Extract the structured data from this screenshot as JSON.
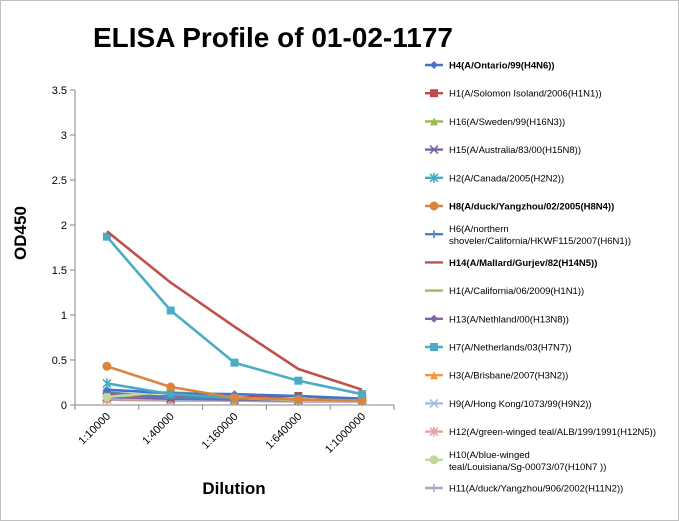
{
  "chart_data": {
    "type": "line",
    "title": "ELISA Profile of 01-02-1177",
    "xlabel": "Dilution",
    "ylabel": "OD450",
    "categories": [
      "1:10000",
      "1:40000",
      "1:160000",
      "1:640000",
      "1:1000000"
    ],
    "ylim": [
      0,
      3.5
    ],
    "yticks": [
      "0",
      "0.5",
      "1",
      "1.5",
      "2",
      "2.5",
      "3",
      "3.5"
    ],
    "legend_position": "right",
    "grid": false,
    "series": [
      {
        "name": "H4(A/Ontario/99(H4N6))",
        "bold": true,
        "color": "#4472C4",
        "marker": "diamond",
        "values": [
          0.17,
          0.13,
          0.12,
          0.1,
          0.07
        ]
      },
      {
        "name": "H1(A/Solomon Isoland/2006(H1N1))",
        "bold": false,
        "color": "#BE4B48",
        "marker": "square",
        "values": [
          0.12,
          0.09,
          0.08,
          0.1,
          0.06
        ]
      },
      {
        "name": "H16(A/Sweden/99(H16N3))",
        "bold": false,
        "color": "#98B954",
        "marker": "triangle",
        "values": [
          0.1,
          0.1,
          0.07,
          0.06,
          0.05
        ]
      },
      {
        "name": "H15(A/Australia/83/00(H15N8))",
        "bold": false,
        "color": "#7D60A0",
        "marker": "x",
        "values": [
          0.09,
          0.07,
          0.06,
          0.05,
          0.05
        ]
      },
      {
        "name": "H2(A/Canada/2005(H2N2))",
        "bold": false,
        "color": "#46AAC5",
        "marker": "star",
        "values": [
          0.24,
          0.12,
          0.08,
          0.06,
          0.05
        ]
      },
      {
        "name": "H8(A/duck/Yangzhou/02/2005(H8N4))",
        "bold": true,
        "color": "#DB843D",
        "marker": "circle",
        "values": [
          0.43,
          0.2,
          0.08,
          0.06,
          0.05
        ]
      },
      {
        "name": "H6(A/northern shoveler/California/HKWF115/2007(H6N1))",
        "bold": false,
        "color": "#4F81BD",
        "marker": "plus",
        "values": [
          0.14,
          0.08,
          0.07,
          0.06,
          0.05
        ]
      },
      {
        "name": "H14(A/Mallard/Gurjev/82(H14N5))",
        "bold": true,
        "color": "#C0504D",
        "marker": "none",
        "values": [
          1.93,
          1.36,
          0.87,
          0.4,
          0.17
        ]
      },
      {
        "name": "H1(A/California/06/2009(H1N1))",
        "bold": false,
        "color": "#9BBB59",
        "marker": "none",
        "values": [
          0.08,
          0.07,
          0.06,
          0.05,
          0.05
        ]
      },
      {
        "name": "H13(A/Nethland/00(H13N8))",
        "bold": false,
        "color": "#8064A2",
        "marker": "diamond",
        "values": [
          0.07,
          0.06,
          0.05,
          0.05,
          0.05
        ]
      },
      {
        "name": "H7(A/Netherlands/03(H7N7))",
        "bold": false,
        "color": "#4BACC6",
        "marker": "square",
        "values": [
          1.87,
          1.05,
          0.47,
          0.27,
          0.12
        ]
      },
      {
        "name": "H3(A/Brisbane/2007(H3N2))",
        "bold": false,
        "color": "#F79646",
        "marker": "triangle",
        "values": [
          0.07,
          0.06,
          0.05,
          0.05,
          0.04
        ]
      },
      {
        "name": "H9(A/Hong Kong/1073/99(H9N2))",
        "bold": false,
        "color": "#A5BCDF",
        "marker": "x",
        "values": [
          0.08,
          0.06,
          0.05,
          0.05,
          0.04
        ]
      },
      {
        "name": "H12(A/green-winged teal/ALB/199/1991(H12N5))",
        "bold": false,
        "color": "#E6A3A2",
        "marker": "star",
        "values": [
          0.06,
          0.05,
          0.05,
          0.04,
          0.04
        ]
      },
      {
        "name": "H10(A/blue-winged teal/Louisiana/Sg-00073/07(H10N7 ))",
        "bold": false,
        "color": "#C3D69B",
        "marker": "circle",
        "values": [
          0.09,
          0.15,
          0.08,
          0.05,
          0.05
        ]
      },
      {
        "name": "H11(A/duck/Yangzhou/906/2002(H11N2))",
        "bold": false,
        "color": "#B3A2C7",
        "marker": "plus",
        "values": [
          0.06,
          0.05,
          0.05,
          0.04,
          0.04
        ]
      }
    ]
  }
}
